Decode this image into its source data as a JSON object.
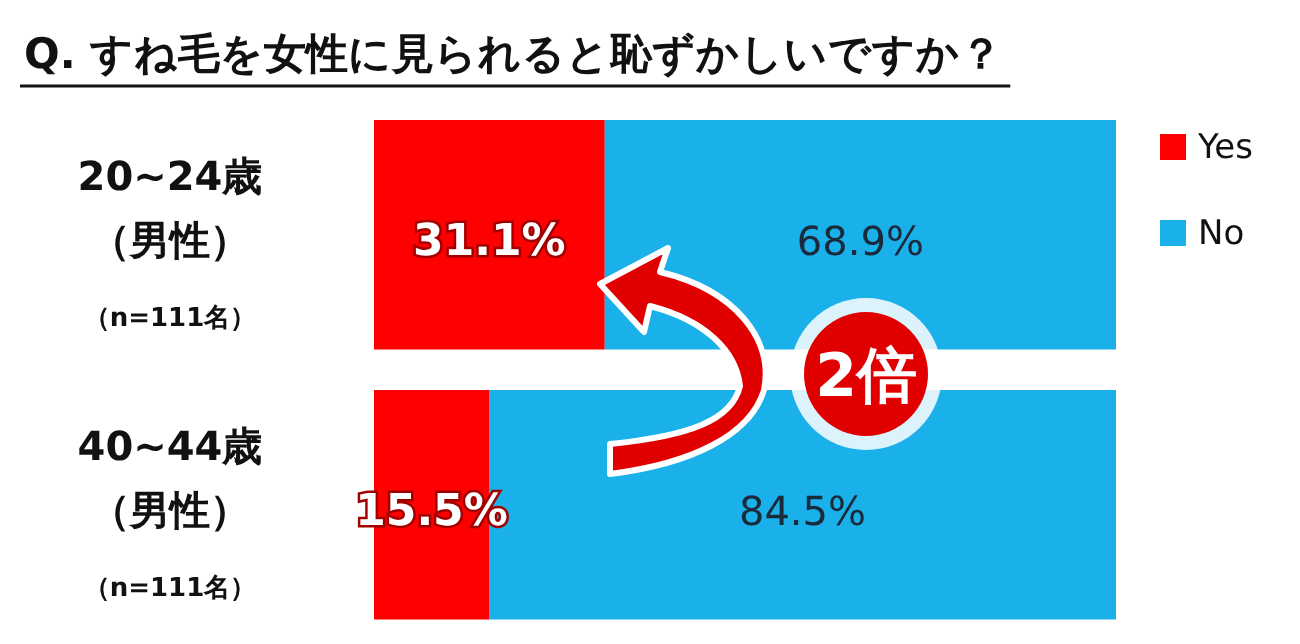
{
  "chart_data": {
    "type": "bar",
    "orientation": "horizontal",
    "stacked": true,
    "title": "Q. すね毛を女性に見られると恥ずかしいですか？",
    "categories": [
      "20~24歳（男性）",
      "40~44歳（男性）"
    ],
    "series": [
      {
        "name": "Yes",
        "color": "#ff0000",
        "values": [
          31.1,
          15.5
        ],
        "value_labels": [
          "31.1%",
          "15.5%"
        ]
      },
      {
        "name": "No",
        "color": "#1ab0ea",
        "values": [
          68.9,
          84.5
        ],
        "value_labels": [
          "68.9%",
          "84.5%"
        ]
      }
    ],
    "annotations": [
      "（n=111名）",
      "（n=111名）",
      "2倍"
    ],
    "legend": "right"
  }
}
